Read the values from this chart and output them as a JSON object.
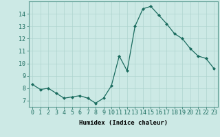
{
  "x": [
    0,
    1,
    2,
    3,
    4,
    5,
    6,
    7,
    8,
    9,
    10,
    11,
    12,
    13,
    14,
    15,
    16,
    17,
    18,
    19,
    20,
    21,
    22,
    23
  ],
  "y": [
    8.3,
    7.9,
    8.0,
    7.6,
    7.2,
    7.3,
    7.4,
    7.2,
    6.8,
    7.2,
    8.2,
    10.6,
    9.4,
    13.0,
    14.4,
    14.6,
    13.9,
    13.2,
    12.4,
    12.0,
    11.2,
    10.6,
    10.4,
    9.6
  ],
  "line_color": "#1a6b5e",
  "marker": "D",
  "marker_size": 2,
  "bg_color": "#cce9e5",
  "grid_color": "#aed4cf",
  "xlabel": "Humidex (Indice chaleur)",
  "xlim": [
    -0.5,
    23.5
  ],
  "ylim": [
    6.5,
    15.0
  ],
  "yticks": [
    7,
    8,
    9,
    10,
    11,
    12,
    13,
    14
  ],
  "xticks": [
    0,
    1,
    2,
    3,
    4,
    5,
    6,
    7,
    8,
    9,
    10,
    11,
    12,
    13,
    14,
    15,
    16,
    17,
    18,
    19,
    20,
    21,
    22,
    23
  ],
  "xlabel_fontsize": 6.5,
  "tick_fontsize": 6.0
}
